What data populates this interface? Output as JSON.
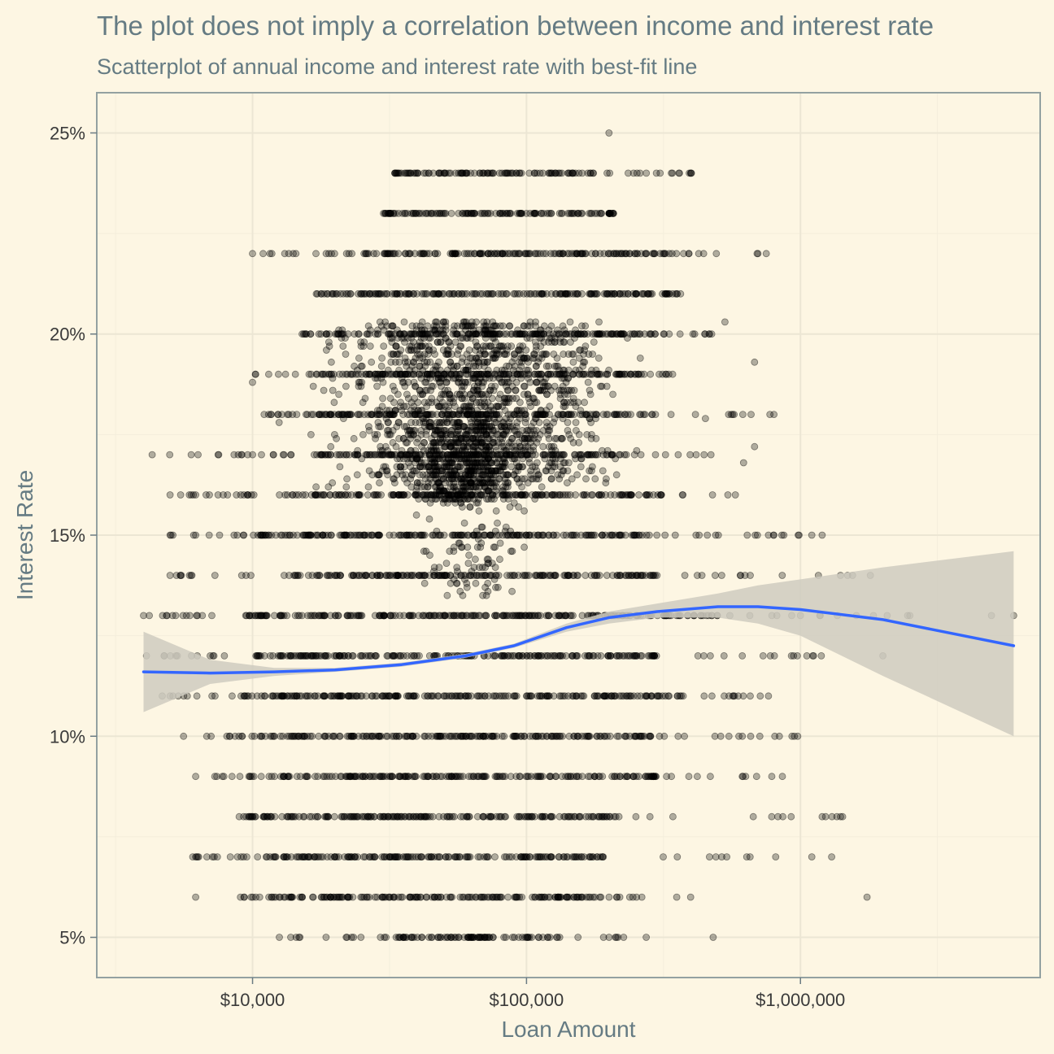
{
  "chart_data": {
    "type": "scatter",
    "title": "The plot does not imply a correlation between income and interest rate",
    "subtitle": "Scatterplot of annual income and interest rate with best-fit line",
    "xlabel": "Loan Amount",
    "ylabel": "Interest Rate",
    "x_scale": "log10",
    "xlim": [
      2700,
      7500000
    ],
    "ylim": [
      4.0,
      26.0
    ],
    "x_ticks": [
      {
        "value": 10000,
        "label": "$10,000"
      },
      {
        "value": 100000,
        "label": "$100,000"
      },
      {
        "value": 1000000,
        "label": "$1,000,000"
      }
    ],
    "y_ticks": [
      {
        "value": 5,
        "label": "5%"
      },
      {
        "value": 10,
        "label": "10%"
      },
      {
        "value": 15,
        "label": "15%"
      },
      {
        "value": 20,
        "label": "20%"
      },
      {
        "value": 25,
        "label": "25%"
      }
    ],
    "grid": true,
    "colors": {
      "points": "#000000",
      "fit_line": "#3366ff",
      "confidence_band": "#cfcbbf",
      "background": "#fdf6e3"
    },
    "bands": [
      {
        "rate": 5,
        "core": [
          30000,
          115000
        ],
        "wide": [
          12000,
          300000
        ]
      },
      {
        "rate": 6,
        "core": [
          13000,
          180000
        ],
        "wide": [
          9000,
          400000
        ]
      },
      {
        "rate": 7,
        "core": [
          11500,
          190000
        ],
        "wide": [
          6000,
          900000
        ]
      },
      {
        "rate": 8,
        "core": [
          11000,
          220000
        ],
        "wide": [
          8000,
          1600000
        ]
      },
      {
        "rate": 9,
        "core": [
          12500,
          300000
        ],
        "wide": [
          6000,
          900000
        ]
      },
      {
        "rate": 10,
        "core": [
          10000,
          290000
        ],
        "wide": [
          6500,
          1000000
        ]
      },
      {
        "rate": 11,
        "core": [
          9000,
          350000
        ],
        "wide": [
          4500,
          950000
        ]
      },
      {
        "rate": 12,
        "core": [
          9500,
          300000
        ],
        "wide": [
          4200,
          1900000
        ]
      },
      {
        "rate": 13,
        "core": [
          9500,
          500000
        ],
        "wide": [
          4000,
          6000000
        ]
      },
      {
        "rate": 14,
        "core": [
          14000,
          300000
        ],
        "wide": [
          5000,
          1700000
        ]
      },
      {
        "rate": 15,
        "core": [
          10000,
          300000
        ],
        "wide": [
          5000,
          1000000
        ]
      },
      {
        "rate": 16,
        "core": [
          14000,
          310000
        ],
        "wide": [
          5000,
          600000
        ]
      },
      {
        "rate": 17,
        "core": [
          17000,
          250000
        ],
        "wide": [
          4200,
          500000
        ]
      },
      {
        "rate": 18,
        "core": [
          17500,
          300000
        ],
        "wide": [
          11000,
          900000
        ]
      },
      {
        "rate": 19,
        "core": [
          17000,
          230000
        ],
        "wide": [
          10000,
          350000
        ]
      },
      {
        "rate": 20,
        "core": [
          20000,
          290000
        ],
        "wide": [
          15000,
          480000
        ]
      },
      {
        "rate": 21,
        "core": [
          21000,
          320000
        ],
        "wide": [
          17000,
          380000
        ]
      },
      {
        "rate": 22,
        "core": [
          25000,
          330000
        ],
        "wide": [
          10000,
          700000
        ]
      },
      {
        "rate": 23,
        "core": [
          32000,
          200000
        ],
        "wide": [
          30000,
          210000
        ]
      },
      {
        "rate": 24,
        "core": [
          35000,
          175000
        ],
        "wide": [
          33000,
          400000
        ]
      }
    ],
    "fit_line": [
      {
        "x": 4000,
        "y": 11.6
      },
      {
        "x": 7000,
        "y": 11.57
      },
      {
        "x": 12000,
        "y": 11.6
      },
      {
        "x": 20000,
        "y": 11.65
      },
      {
        "x": 35000,
        "y": 11.78
      },
      {
        "x": 60000,
        "y": 12.0
      },
      {
        "x": 90000,
        "y": 12.25
      },
      {
        "x": 140000,
        "y": 12.7
      },
      {
        "x": 200000,
        "y": 12.95
      },
      {
        "x": 300000,
        "y": 13.1
      },
      {
        "x": 500000,
        "y": 13.22
      },
      {
        "x": 700000,
        "y": 13.22
      },
      {
        "x": 1000000,
        "y": 13.15
      },
      {
        "x": 2000000,
        "y": 12.9
      },
      {
        "x": 6000000,
        "y": 12.25
      }
    ],
    "confidence_band": [
      {
        "x": 4000,
        "lo": 10.6,
        "hi": 12.6
      },
      {
        "x": 7000,
        "lo": 11.3,
        "hi": 11.9
      },
      {
        "x": 12000,
        "lo": 11.5,
        "hi": 11.7
      },
      {
        "x": 20000,
        "lo": 11.6,
        "hi": 11.7
      },
      {
        "x": 35000,
        "lo": 11.73,
        "hi": 11.83
      },
      {
        "x": 60000,
        "lo": 11.95,
        "hi": 12.05
      },
      {
        "x": 90000,
        "lo": 12.2,
        "hi": 12.3
      },
      {
        "x": 140000,
        "lo": 12.6,
        "hi": 12.8
      },
      {
        "x": 200000,
        "lo": 12.8,
        "hi": 13.1
      },
      {
        "x": 300000,
        "lo": 12.95,
        "hi": 13.3
      },
      {
        "x": 500000,
        "lo": 12.95,
        "hi": 13.55
      },
      {
        "x": 700000,
        "lo": 12.8,
        "hi": 13.75
      },
      {
        "x": 1000000,
        "lo": 12.5,
        "hi": 13.9
      },
      {
        "x": 2000000,
        "lo": 11.5,
        "hi": 14.2
      },
      {
        "x": 6000000,
        "lo": 10.0,
        "hi": 14.6
      }
    ],
    "outliers": [
      {
        "x": 4000,
        "y": 13
      },
      {
        "x": 4200,
        "y": 13
      },
      {
        "x": 4100,
        "y": 12
      },
      {
        "x": 4300,
        "y": 17
      },
      {
        "x": 5000,
        "y": 16
      },
      {
        "x": 5000,
        "y": 15
      },
      {
        "x": 5000,
        "y": 14
      },
      {
        "x": 5000,
        "y": 11
      },
      {
        "x": 6200,
        "y": 16
      },
      {
        "x": 6200,
        "y": 15
      },
      {
        "x": 5600,
        "y": 10
      },
      {
        "x": 6200,
        "y": 9
      },
      {
        "x": 6200,
        "y": 7
      },
      {
        "x": 6200,
        "y": 6
      },
      {
        "x": 10000,
        "y": 22
      },
      {
        "x": 9600,
        "y": 16
      },
      {
        "x": 9600,
        "y": 17
      },
      {
        "x": 10000,
        "y": 18.8
      },
      {
        "x": 12500,
        "y": 17.8
      },
      {
        "x": 200000,
        "y": 25
      },
      {
        "x": 400000,
        "y": 24
      },
      {
        "x": 750000,
        "y": 22
      },
      {
        "x": 530000,
        "y": 20.3
      },
      {
        "x": 680000,
        "y": 19.3
      },
      {
        "x": 680000,
        "y": 17.2
      },
      {
        "x": 800000,
        "y": 18
      },
      {
        "x": 620000,
        "y": 16.8
      },
      {
        "x": 450000,
        "y": 17.9
      },
      {
        "x": 1000000,
        "y": 13
      },
      {
        "x": 1100000,
        "y": 15
      },
      {
        "x": 1200000,
        "y": 15
      },
      {
        "x": 1600000,
        "y": 13
      },
      {
        "x": 1800000,
        "y": 14
      },
      {
        "x": 2000000,
        "y": 12
      },
      {
        "x": 1750000,
        "y": 6
      },
      {
        "x": 6000000,
        "y": 13
      },
      {
        "x": 480000,
        "y": 5
      },
      {
        "x": 1400000,
        "y": 14
      },
      {
        "x": 1300000,
        "y": 7
      },
      {
        "x": 1100000,
        "y": 7
      },
      {
        "x": 1200000,
        "y": 8
      },
      {
        "x": 1400000,
        "y": 8
      }
    ],
    "dense_clusters": [
      {
        "x_range": [
          30000,
          120000
        ],
        "y_range": [
          13.4,
          15.8
        ],
        "count": 90
      },
      {
        "x_range": [
          14000,
          300000
        ],
        "y_range": [
          16.2,
          20.3
        ],
        "count": 1400
      },
      {
        "x_range": [
          28000,
          120000
        ],
        "y_range": [
          15.8,
          17.8
        ],
        "count": 500
      }
    ]
  }
}
